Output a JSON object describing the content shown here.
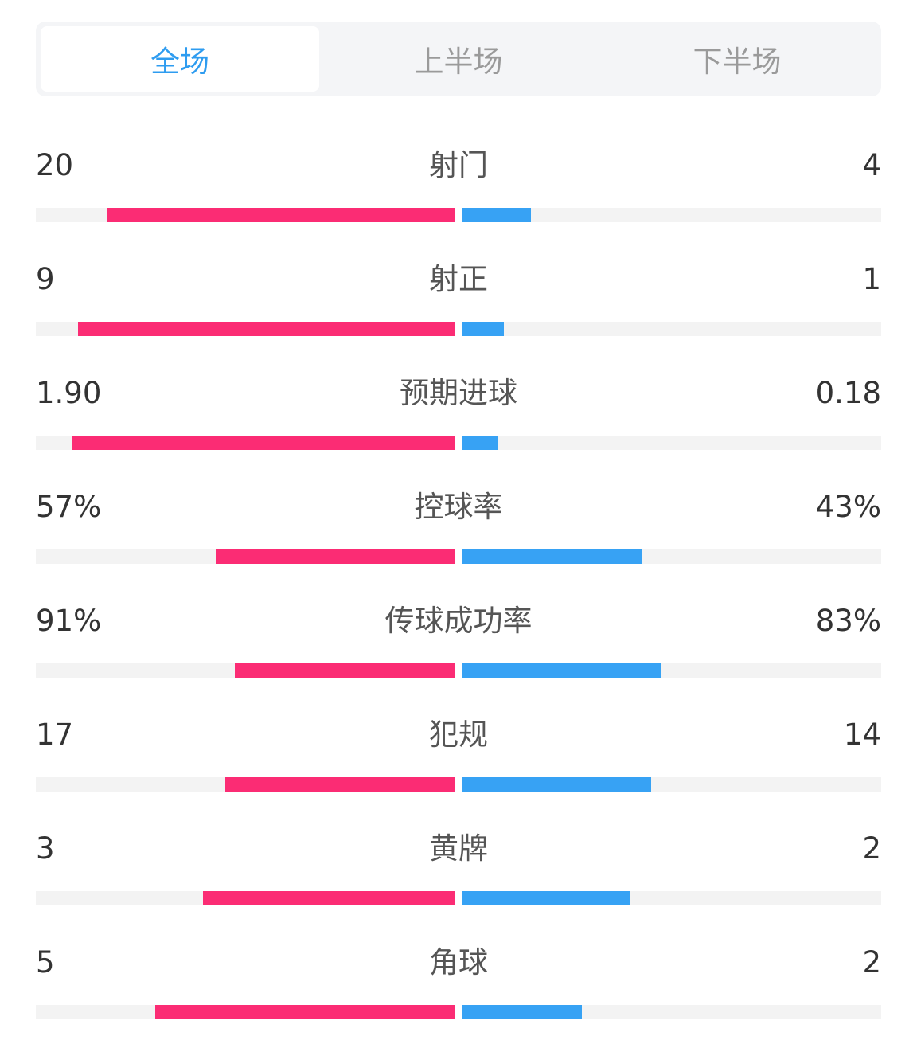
{
  "tabs": [
    {
      "label": "全场",
      "active": true
    },
    {
      "label": "上半场",
      "active": false
    },
    {
      "label": "下半场",
      "active": false
    }
  ],
  "colors": {
    "home": "#fb2c74",
    "away": "#37a2f4",
    "tab_active": "#2e9cf0"
  },
  "stats": [
    {
      "label": "射门",
      "home": "20",
      "away": "4",
      "home_frac": 0.83,
      "away_frac": 0.165
    },
    {
      "label": "射正",
      "home": "9",
      "away": "1",
      "home_frac": 0.9,
      "away_frac": 0.1
    },
    {
      "label": "预期进球",
      "home": "1.90",
      "away": "0.18",
      "home_frac": 0.914,
      "away_frac": 0.087
    },
    {
      "label": "控球率",
      "home": "57%",
      "away": "43%",
      "home_frac": 0.57,
      "away_frac": 0.43
    },
    {
      "label": "传球成功率",
      "home": "91%",
      "away": "83%",
      "home_frac": 0.524,
      "away_frac": 0.476
    },
    {
      "label": "犯规",
      "home": "17",
      "away": "14",
      "home_frac": 0.548,
      "away_frac": 0.452
    },
    {
      "label": "黄牌",
      "home": "3",
      "away": "2",
      "home_frac": 0.6,
      "away_frac": 0.4
    },
    {
      "label": "角球",
      "home": "5",
      "away": "2",
      "home_frac": 0.714,
      "away_frac": 0.286
    }
  ]
}
